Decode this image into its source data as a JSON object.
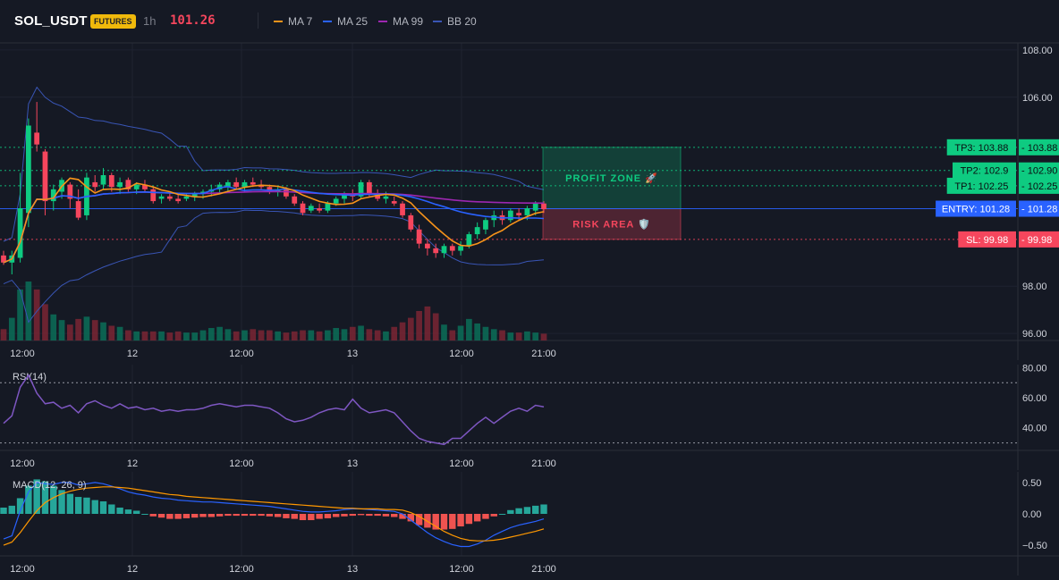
{
  "header": {
    "symbol": "SOL_USDT",
    "badge": "FUTURES",
    "timeframe": "1h",
    "last_price": "101.26",
    "legend": [
      {
        "label": "MA 7",
        "color": "#f7931a"
      },
      {
        "label": "MA 25",
        "color": "#2962ff"
      },
      {
        "label": "MA 99",
        "color": "#9c27b0"
      },
      {
        "label": "BB 20",
        "color": "#3955b5"
      }
    ]
  },
  "colors": {
    "up": "#0ecb81",
    "down": "#f6465d",
    "entry": "#2962ff",
    "rsi": "#7e57c2",
    "macd_line": "#2962ff",
    "signal_line": "#ff9800",
    "hist_up": "#26a69a",
    "hist_down": "#ef5350"
  },
  "chart_data": [
    {
      "type": "candlestick",
      "x_ticks": [
        "12:00",
        "12",
        "12:00",
        "13",
        "12:00",
        "21:00"
      ],
      "ylim": [
        95.7,
        108.3
      ],
      "y_ticks": [
        "108.00",
        "106.00",
        "98.00",
        "96.00"
      ],
      "candles": [
        [
          99.3,
          99.5,
          98.9,
          99.0
        ],
        [
          99.0,
          99.5,
          98.5,
          99.3
        ],
        [
          99.2,
          102.8,
          99.0,
          101.3
        ],
        [
          101.1,
          105.1,
          100.5,
          104.8
        ],
        [
          104.5,
          105.8,
          103.7,
          104.0
        ],
        [
          103.7,
          103.8,
          101.0,
          101.6
        ],
        [
          101.6,
          102.3,
          101.2,
          102.1
        ],
        [
          102.0,
          102.6,
          101.7,
          102.5
        ],
        [
          102.3,
          102.4,
          101.3,
          101.7
        ],
        [
          101.6,
          102.1,
          100.8,
          100.9
        ],
        [
          101.0,
          102.8,
          100.8,
          102.6
        ],
        [
          102.4,
          102.7,
          102.0,
          102.2
        ],
        [
          102.3,
          103.0,
          102.1,
          102.7
        ],
        [
          102.7,
          102.8,
          102.0,
          102.2
        ],
        [
          102.2,
          102.6,
          101.9,
          102.4
        ],
        [
          102.5,
          102.6,
          102.0,
          102.1
        ],
        [
          102.1,
          102.4,
          101.9,
          102.3
        ],
        [
          102.3,
          102.5,
          102.0,
          102.1
        ],
        [
          102.1,
          102.2,
          101.5,
          101.6
        ],
        [
          101.7,
          101.9,
          101.5,
          101.8
        ],
        [
          101.8,
          102.0,
          101.6,
          101.7
        ],
        [
          101.7,
          101.9,
          101.5,
          101.6
        ],
        [
          101.7,
          101.9,
          101.6,
          101.8
        ],
        [
          101.8,
          102.0,
          101.6,
          101.9
        ],
        [
          101.9,
          102.1,
          101.7,
          102.0
        ],
        [
          102.0,
          102.3,
          101.8,
          102.1
        ],
        [
          102.1,
          102.4,
          101.9,
          102.3
        ],
        [
          102.2,
          102.5,
          102.0,
          102.4
        ],
        [
          102.4,
          102.6,
          102.1,
          102.2
        ],
        [
          102.2,
          102.5,
          102.0,
          102.4
        ],
        [
          102.4,
          102.6,
          102.2,
          102.3
        ],
        [
          102.3,
          102.5,
          102.1,
          102.2
        ],
        [
          102.2,
          102.3,
          101.9,
          102.0
        ],
        [
          102.0,
          102.2,
          101.8,
          102.1
        ],
        [
          102.1,
          102.2,
          101.7,
          101.8
        ],
        [
          101.8,
          101.9,
          101.4,
          101.5
        ],
        [
          101.5,
          101.6,
          101.0,
          101.1
        ],
        [
          101.2,
          101.5,
          101.1,
          101.4
        ],
        [
          101.3,
          101.5,
          101.1,
          101.2
        ],
        [
          101.2,
          101.6,
          101.1,
          101.5
        ],
        [
          101.5,
          101.8,
          101.4,
          101.7
        ],
        [
          101.7,
          102.0,
          101.5,
          101.9
        ],
        [
          101.9,
          102.1,
          101.6,
          101.8
        ],
        [
          101.8,
          102.5,
          101.7,
          102.4
        ],
        [
          102.4,
          102.5,
          101.8,
          101.9
        ],
        [
          101.9,
          102.1,
          101.6,
          101.7
        ],
        [
          101.7,
          102.0,
          101.5,
          101.8
        ],
        [
          101.6,
          101.8,
          101.4,
          101.5
        ],
        [
          101.5,
          101.6,
          100.9,
          101.0
        ],
        [
          101.0,
          101.1,
          100.3,
          100.4
        ],
        [
          100.4,
          100.6,
          99.6,
          99.8
        ],
        [
          99.8,
          100.0,
          99.3,
          99.6
        ],
        [
          99.6,
          99.8,
          99.2,
          99.4
        ],
        [
          99.4,
          99.8,
          99.2,
          99.7
        ],
        [
          99.7,
          99.8,
          99.3,
          99.5
        ],
        [
          99.5,
          99.9,
          99.3,
          99.7
        ],
        [
          99.7,
          100.3,
          99.6,
          100.2
        ],
        [
          100.2,
          100.7,
          100.0,
          100.5
        ],
        [
          100.4,
          100.9,
          100.2,
          100.8
        ],
        [
          100.8,
          101.2,
          100.5,
          101.0
        ],
        [
          101.0,
          101.2,
          100.6,
          100.8
        ],
        [
          100.8,
          101.3,
          100.7,
          101.2
        ],
        [
          101.1,
          101.3,
          100.8,
          101.0
        ],
        [
          101.0,
          101.4,
          100.8,
          101.3
        ],
        [
          101.2,
          101.6,
          101.0,
          101.5
        ],
        [
          101.5,
          101.6,
          101.1,
          101.26
        ]
      ],
      "volume": [
        1,
        2,
        4.5,
        5.2,
        4.5,
        3.2,
        2.3,
        1.8,
        1.4,
        1.9,
        2.1,
        1.8,
        1.6,
        1.3,
        1.2,
        0.9,
        0.8,
        0.8,
        0.8,
        0.8,
        0.7,
        0.8,
        0.7,
        0.7,
        0.9,
        1.1,
        1.2,
        1.0,
        0.8,
        0.9,
        1.0,
        0.9,
        0.9,
        0.8,
        0.7,
        0.8,
        0.9,
        0.9,
        0.8,
        0.9,
        1.1,
        1.0,
        1.2,
        1.3,
        1.0,
        0.9,
        0.8,
        1.2,
        1.6,
        2.0,
        2.6,
        3.0,
        2.4,
        1.4,
        0.9,
        1.3,
        1.9,
        1.5,
        1.2,
        1.0,
        0.9,
        0.7,
        0.7,
        0.8,
        0.7,
        0.6
      ],
      "lines": [
        {
          "name": "TP3",
          "label": "TP3: 103.88",
          "value": 103.88,
          "axis_label": "103.88",
          "color": "#0ecb81"
        },
        {
          "name": "TP2",
          "label": "TP2: 102.9",
          "value": 102.9,
          "axis_label": "102.90",
          "color": "#0ecb81"
        },
        {
          "name": "TP1",
          "label": "TP1: 102.25",
          "value": 102.25,
          "axis_label": "102.25",
          "color": "#0ecb81"
        },
        {
          "name": "ENTRY",
          "label": "ENTRY: 101.28",
          "value": 101.28,
          "axis_label": "101.28",
          "color": "#2962ff"
        },
        {
          "name": "SL",
          "label": "SL: 99.98",
          "value": 99.98,
          "axis_label": "99.98",
          "color": "#f6465d"
        }
      ],
      "zones": [
        {
          "label": "PROFIT ZONE 🚀",
          "from": 101.28,
          "to": 103.88,
          "color": "#0ecb81"
        },
        {
          "label": "RISK AREA 🛡️",
          "from": 99.98,
          "to": 101.28,
          "color": "#f6465d"
        }
      ]
    },
    {
      "type": "line",
      "label": "RSI(14)",
      "ylim": [
        25,
        82
      ],
      "y_ticks": [
        "80.00",
        "60.00",
        "40.00"
      ],
      "levels": [
        70,
        30
      ],
      "x_ticks": [
        "12:00",
        "12",
        "12:00",
        "13",
        "12:00",
        "21:00"
      ],
      "values": [
        43,
        48,
        67,
        75,
        63,
        56,
        57,
        53,
        55,
        50,
        56,
        58,
        55,
        53,
        56,
        53,
        54,
        52,
        53,
        51,
        52,
        51,
        52,
        52,
        53,
        55,
        56,
        55,
        54,
        55,
        55,
        54,
        53,
        50,
        46,
        44,
        45,
        47,
        50,
        52,
        53,
        52,
        59,
        53,
        50,
        51,
        52,
        50,
        44,
        38,
        33,
        31,
        30,
        29,
        33,
        33,
        38,
        43,
        47,
        43,
        47,
        51,
        53,
        51,
        55,
        54
      ],
      "x_count": 66
    },
    {
      "type": "macd",
      "label": "MACD(12, 26, 9)",
      "ylim": [
        -0.67,
        0.67
      ],
      "y_ticks": [
        "0.50",
        "0.00",
        "−0.50"
      ],
      "x_ticks": [
        "12:00",
        "12",
        "12:00",
        "13",
        "12:00",
        "21:00"
      ],
      "histogram": [
        0.1,
        0.13,
        0.25,
        0.45,
        0.55,
        0.52,
        0.45,
        0.38,
        0.32,
        0.27,
        0.26,
        0.22,
        0.2,
        0.15,
        0.1,
        0.07,
        0.05,
        0.0,
        -0.04,
        -0.06,
        -0.08,
        -0.08,
        -0.07,
        -0.06,
        -0.05,
        -0.05,
        -0.04,
        -0.03,
        -0.03,
        -0.03,
        -0.03,
        -0.03,
        -0.04,
        -0.05,
        -0.07,
        -0.08,
        -0.1,
        -0.1,
        -0.08,
        -0.07,
        -0.05,
        -0.04,
        -0.03,
        -0.02,
        -0.03,
        -0.03,
        -0.04,
        -0.05,
        -0.08,
        -0.12,
        -0.18,
        -0.22,
        -0.25,
        -0.25,
        -0.24,
        -0.2,
        -0.16,
        -0.12,
        -0.08,
        -0.04,
        0.0,
        0.06,
        0.09,
        0.11,
        0.13,
        0.15
      ],
      "macd": [
        -0.4,
        -0.35,
        0.05,
        0.35,
        0.5,
        0.48,
        0.47,
        0.5,
        0.5,
        0.46,
        0.48,
        0.5,
        0.48,
        0.44,
        0.4,
        0.35,
        0.32,
        0.3,
        0.27,
        0.25,
        0.24,
        0.22,
        0.21,
        0.2,
        0.19,
        0.19,
        0.18,
        0.17,
        0.16,
        0.15,
        0.14,
        0.13,
        0.12,
        0.1,
        0.08,
        0.06,
        0.04,
        0.03,
        0.03,
        0.04,
        0.05,
        0.07,
        0.08,
        0.08,
        0.07,
        0.06,
        0.05,
        0.04,
        0.0,
        -0.1,
        -0.2,
        -0.3,
        -0.38,
        -0.44,
        -0.49,
        -0.52,
        -0.52,
        -0.48,
        -0.42,
        -0.34,
        -0.28,
        -0.22,
        -0.18,
        -0.15,
        -0.12,
        -0.08
      ],
      "signal": [
        -0.5,
        -0.45,
        -0.3,
        -0.12,
        0.05,
        0.18,
        0.26,
        0.32,
        0.36,
        0.39,
        0.41,
        0.42,
        0.43,
        0.43,
        0.42,
        0.41,
        0.39,
        0.37,
        0.35,
        0.33,
        0.31,
        0.3,
        0.28,
        0.27,
        0.26,
        0.25,
        0.24,
        0.23,
        0.22,
        0.21,
        0.2,
        0.19,
        0.18,
        0.17,
        0.16,
        0.15,
        0.14,
        0.13,
        0.12,
        0.11,
        0.1,
        0.09,
        0.09,
        0.08,
        0.08,
        0.08,
        0.07,
        0.07,
        0.06,
        0.02,
        -0.04,
        -0.12,
        -0.2,
        -0.28,
        -0.34,
        -0.39,
        -0.42,
        -0.43,
        -0.43,
        -0.42,
        -0.4,
        -0.37,
        -0.34,
        -0.31,
        -0.28,
        -0.24
      ]
    }
  ]
}
